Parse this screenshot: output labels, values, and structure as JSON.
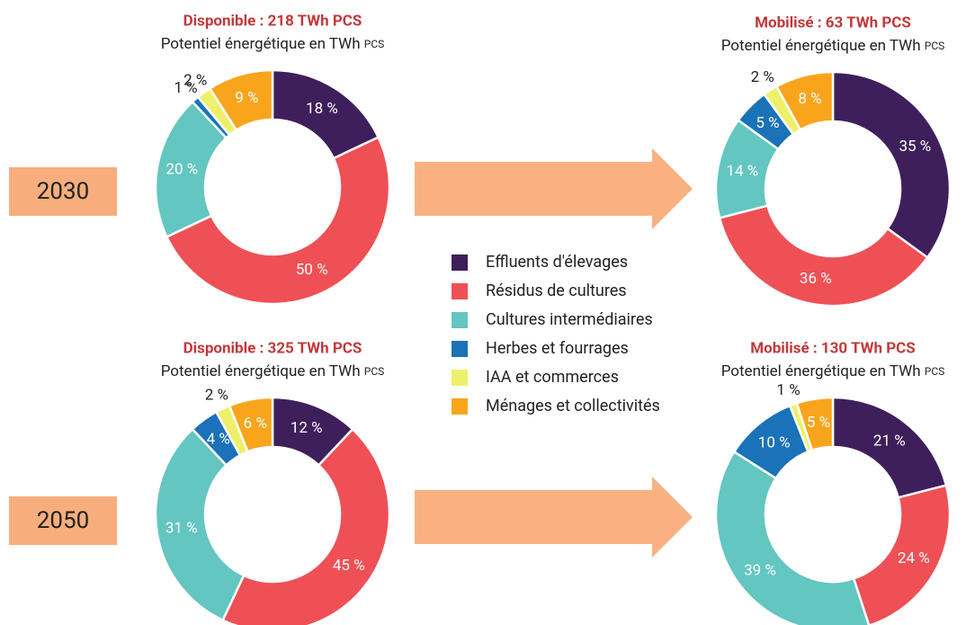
{
  "years": [
    "2030",
    "2050"
  ],
  "legend": {
    "categories": [
      "Effluents d'élevages",
      "Résidus de cultures",
      "Cultures intermédiaires",
      "Herbes et fourrages",
      "IAA et commerces",
      "Ménages et collectivités"
    ],
    "colors": [
      "#3f1f5b",
      "#ef5055",
      "#63c6c0",
      "#1a72b8",
      "#eef06a",
      "#f9a51c"
    ]
  },
  "chart_data": [
    {
      "type": "pie",
      "title": "Disponible : 218 TWh PCS",
      "subtitle": "Potentiel énergétique en TWh",
      "subtitle_unit": "PCS",
      "values": [
        18,
        50,
        20,
        1,
        2,
        9
      ],
      "value_labels": [
        "18 %",
        "50 %",
        "20 %",
        "1 %",
        "2 %",
        "9 %"
      ]
    },
    {
      "type": "pie",
      "title": "Mobilisé : 63 TWh PCS",
      "subtitle": "Potentiel énergétique en TWh",
      "subtitle_unit": "PCS",
      "values": [
        35,
        36,
        14,
        5,
        2,
        8
      ],
      "value_labels": [
        "35 %",
        "36 %",
        "14 %",
        "5 %",
        "2 %",
        "8 %"
      ]
    },
    {
      "type": "pie",
      "title": "Disponible : 325 TWh PCS",
      "subtitle": "Potentiel énergétique en TWh",
      "subtitle_unit": "PCS",
      "values": [
        12,
        45,
        31,
        4,
        2,
        6
      ],
      "value_labels": [
        "12 %",
        "45 %",
        "31 %",
        "4 %",
        "2 %",
        "6 %"
      ]
    },
    {
      "type": "pie",
      "title": "Mobilisé : 130 TWh PCS",
      "subtitle": "Potentiel énergétique en TWh",
      "subtitle_unit": "PCS",
      "values": [
        21,
        24,
        39,
        10,
        1,
        5
      ],
      "value_labels": [
        "21 %",
        "24 %",
        "39 %",
        "10 %",
        "1 %",
        "5 %"
      ]
    }
  ]
}
